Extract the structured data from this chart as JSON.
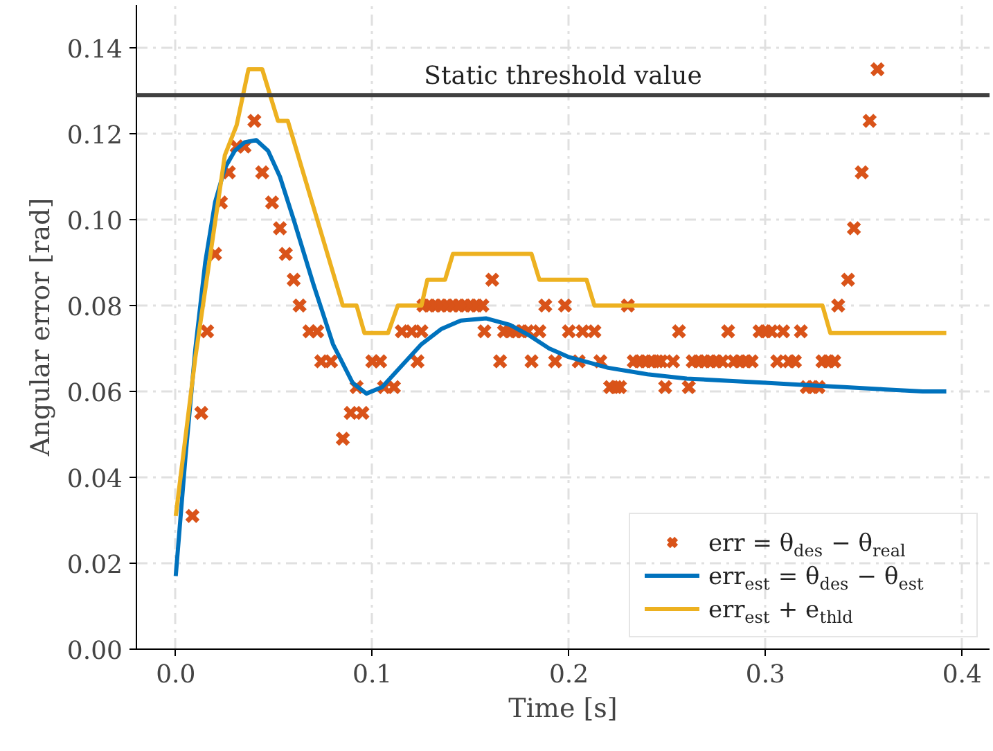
{
  "chart_data": {
    "type": "line",
    "xlabel": "Time [s]",
    "ylabel": "Angular error [rad]",
    "xlim": [
      -0.02,
      0.414
    ],
    "ylim": [
      0,
      0.15
    ],
    "xticks": [
      {
        "value": 0,
        "label": "0.0"
      },
      0.1,
      0.2,
      0.3,
      0.4
    ],
    "yticks": [
      {
        "value": 0,
        "label": "0.00"
      },
      0.02,
      0.04,
      0.06,
      0.08,
      {
        "value": 0.1,
        "label": "0.10"
      },
      0.12,
      0.14
    ],
    "grid": true,
    "legend": "bottom right",
    "line_style": "solid",
    "ref_lines": [
      {
        "axis": "y",
        "value": 0.129,
        "label": "Static threshold value",
        "color": "#404040"
      }
    ],
    "series": [
      {
        "name": "err = θ$_{des}$ − θ$_{real}$",
        "type": "scatter",
        "marker": "cross",
        "color": "#d95319",
        "x": [
          0.0085,
          0.013,
          0.016,
          0.02,
          0.023,
          0.027,
          0.031,
          0.035,
          0.04,
          0.044,
          0.049,
          0.053,
          0.056,
          0.06,
          0.063,
          0.068,
          0.072,
          0.074,
          0.079,
          0.085,
          0.089,
          0.092,
          0.095,
          0.1,
          0.104,
          0.106,
          0.111,
          0.115,
          0.12,
          0.123,
          0.125,
          0.126,
          0.129,
          0.132,
          0.135,
          0.138,
          0.141,
          0.144,
          0.147,
          0.15,
          0.153,
          0.156,
          0.157,
          0.161,
          0.165,
          0.167,
          0.17,
          0.173,
          0.176,
          0.179,
          0.181,
          0.185,
          0.188,
          0.193,
          0.198,
          0.2,
          0.205,
          0.207,
          0.213,
          0.216,
          0.221,
          0.224,
          0.226,
          0.23,
          0.233,
          0.236,
          0.239,
          0.242,
          0.245,
          0.247,
          0.249,
          0.253,
          0.256,
          0.261,
          0.263,
          0.266,
          0.269,
          0.272,
          0.275,
          0.278,
          0.281,
          0.284,
          0.287,
          0.29,
          0.293,
          0.297,
          0.3,
          0.303,
          0.306,
          0.309,
          0.312,
          0.315,
          0.318,
          0.321,
          0.324,
          0.327,
          0.329,
          0.332,
          0.335,
          0.337,
          0.342,
          0.345,
          0.349,
          0.353,
          0.357
        ],
        "values": [
          0.031,
          0.055,
          0.074,
          0.092,
          0.104,
          0.111,
          0.117,
          0.117,
          0.123,
          0.111,
          0.104,
          0.098,
          0.092,
          0.086,
          0.08,
          0.074,
          0.074,
          0.067,
          0.067,
          0.049,
          0.055,
          0.061,
          0.055,
          0.067,
          0.067,
          0.061,
          0.061,
          0.074,
          0.074,
          0.067,
          0.074,
          0.08,
          0.08,
          0.08,
          0.08,
          0.08,
          0.08,
          0.08,
          0.08,
          0.08,
          0.08,
          0.08,
          0.074,
          0.086,
          0.067,
          0.074,
          0.074,
          0.074,
          0.074,
          0.074,
          0.067,
          0.074,
          0.08,
          0.067,
          0.08,
          0.074,
          0.067,
          0.074,
          0.074,
          0.067,
          0.061,
          0.061,
          0.061,
          0.08,
          0.067,
          0.067,
          0.067,
          0.067,
          0.067,
          0.067,
          0.061,
          0.067,
          0.074,
          0.061,
          0.067,
          0.067,
          0.067,
          0.067,
          0.067,
          0.067,
          0.074,
          0.067,
          0.067,
          0.067,
          0.067,
          0.074,
          0.074,
          0.074,
          0.067,
          0.074,
          0.067,
          0.067,
          0.074,
          0.061,
          0.061,
          0.061,
          0.067,
          0.067,
          0.067,
          0.08,
          0.086,
          0.098,
          0.111,
          0.123,
          0.135
        ]
      },
      {
        "name": "err$_{est}$ = θ$_{des}$ − θ$_{est}$",
        "color": "#0072bd",
        "x": [
          0.0,
          0.005,
          0.01,
          0.015,
          0.02,
          0.025,
          0.03,
          0.035,
          0.041,
          0.047,
          0.053,
          0.06,
          0.07,
          0.08,
          0.09,
          0.097,
          0.105,
          0.115,
          0.125,
          0.135,
          0.145,
          0.158,
          0.17,
          0.18,
          0.19,
          0.2,
          0.22,
          0.24,
          0.26,
          0.28,
          0.3,
          0.32,
          0.34,
          0.36,
          0.38,
          0.392
        ],
        "values": [
          0.017,
          0.045,
          0.07,
          0.09,
          0.104,
          0.112,
          0.116,
          0.118,
          0.1185,
          0.116,
          0.11,
          0.1,
          0.085,
          0.071,
          0.062,
          0.0595,
          0.061,
          0.066,
          0.071,
          0.0745,
          0.0765,
          0.077,
          0.0755,
          0.073,
          0.07,
          0.068,
          0.0655,
          0.064,
          0.063,
          0.0625,
          0.062,
          0.0615,
          0.061,
          0.0605,
          0.06,
          0.06
        ]
      },
      {
        "name": "err$_{est}$ + e$_{thld}$",
        "color": "#edb120",
        "x": [
          0.0,
          0.01,
          0.025,
          0.031,
          0.037,
          0.044,
          0.052,
          0.057,
          0.085,
          0.092,
          0.096,
          0.108,
          0.113,
          0.125,
          0.128,
          0.137,
          0.141,
          0.181,
          0.185,
          0.209,
          0.213,
          0.329,
          0.333,
          0.392
        ],
        "values": [
          0.031,
          0.068,
          0.115,
          0.122,
          0.135,
          0.135,
          0.123,
          0.123,
          0.08,
          0.08,
          0.0736,
          0.0736,
          0.08,
          0.08,
          0.086,
          0.086,
          0.092,
          0.092,
          0.086,
          0.086,
          0.08,
          0.08,
          0.0736,
          0.0736
        ]
      }
    ]
  }
}
